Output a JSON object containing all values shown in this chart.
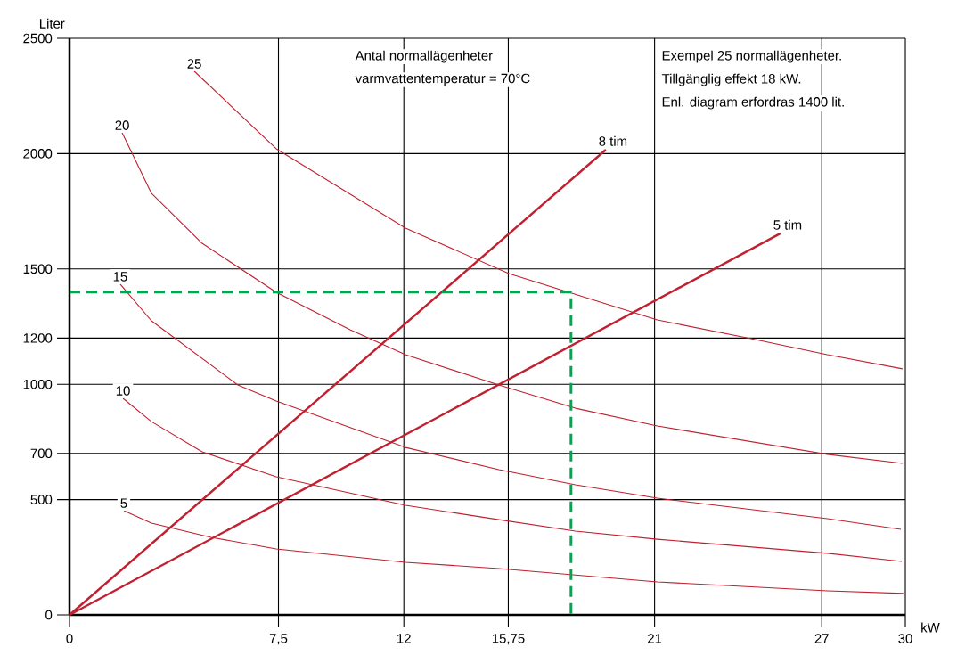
{
  "chart_data": {
    "type": "line",
    "xlabel": "kW",
    "ylabel": "Liter",
    "annotations": [
      "Antal normallägenheter",
      "varmvattentemperatur = 70°C",
      "Exempel 25 normallägenheter.",
      "Tillgänglig effekt 18 kW.",
      "Enl. diagram erfordras 1400 lit."
    ],
    "xlim": [
      0,
      30
    ],
    "ylim": [
      0,
      2500
    ],
    "xticks": [
      0,
      {
        "value": 7.5,
        "label": "7,5"
      },
      12,
      {
        "value": 15.75,
        "label": "15,75"
      },
      21,
      27,
      30
    ],
    "yticks": [
      0,
      500,
      700,
      1000,
      1200,
      1500,
      2000,
      2500
    ],
    "grid": true,
    "marker": "none",
    "series": [
      {
        "name": "25",
        "color": "#c0202f",
        "x": [
          4.48,
          7.42,
          12.06,
          15.77,
          21.1,
          24.46,
          27.2,
          29.9
        ],
        "values": [
          2357,
          2021,
          1677,
          1480,
          1279,
          1198,
          1128,
          1067
        ]
      },
      {
        "name": "20",
        "color": "#c0202f",
        "x": [
          1.89,
          2.94,
          4.76,
          7.42,
          10.07,
          12.06,
          15.41,
          18.16,
          21.1,
          27.2,
          29.9
        ],
        "values": [
          2090,
          1828,
          1611,
          1399,
          1236,
          1128,
          997,
          896,
          819,
          696,
          657
        ]
      },
      {
        "name": "15",
        "color": "#c0202f",
        "x": [
          1.82,
          2.94,
          6.04,
          7.42,
          12.06,
          15.41,
          18.16,
          21.1,
          27.2,
          29.84
        ],
        "values": [
          1434,
          1275,
          997,
          927,
          726,
          630,
          564,
          506,
          417,
          371
        ]
      },
      {
        "name": "10",
        "color": "#c0202f",
        "x": [
          1.92,
          2.94,
          4.76,
          7.42,
          12.06,
          15.41,
          18.16,
          21.1,
          27.2,
          29.87
        ],
        "values": [
          939,
          838,
          707,
          599,
          475,
          413,
          363,
          328,
          267,
          232
        ]
      },
      {
        "name": "5",
        "color": "#c0202f",
        "x": [
          1.95,
          2.94,
          5.08,
          7.42,
          12.06,
          15.41,
          21.1,
          27.2,
          29.93
        ],
        "values": [
          452,
          398,
          336,
          286,
          228,
          201,
          143,
          104,
          93
        ]
      },
      {
        "name": "8 tim",
        "color": "#c0202f",
        "x": [
          0,
          19.25
        ],
        "values": [
          0,
          2017
        ]
      },
      {
        "name": "5 tim",
        "color": "#c0202f",
        "x": [
          0,
          25.52
        ],
        "values": [
          0,
          1654
        ]
      },
      {
        "color": "#00a651",
        "line_style": "dashed",
        "x": [
          0,
          18,
          18
        ],
        "values": [
          1400,
          1400,
          0
        ]
      }
    ]
  }
}
